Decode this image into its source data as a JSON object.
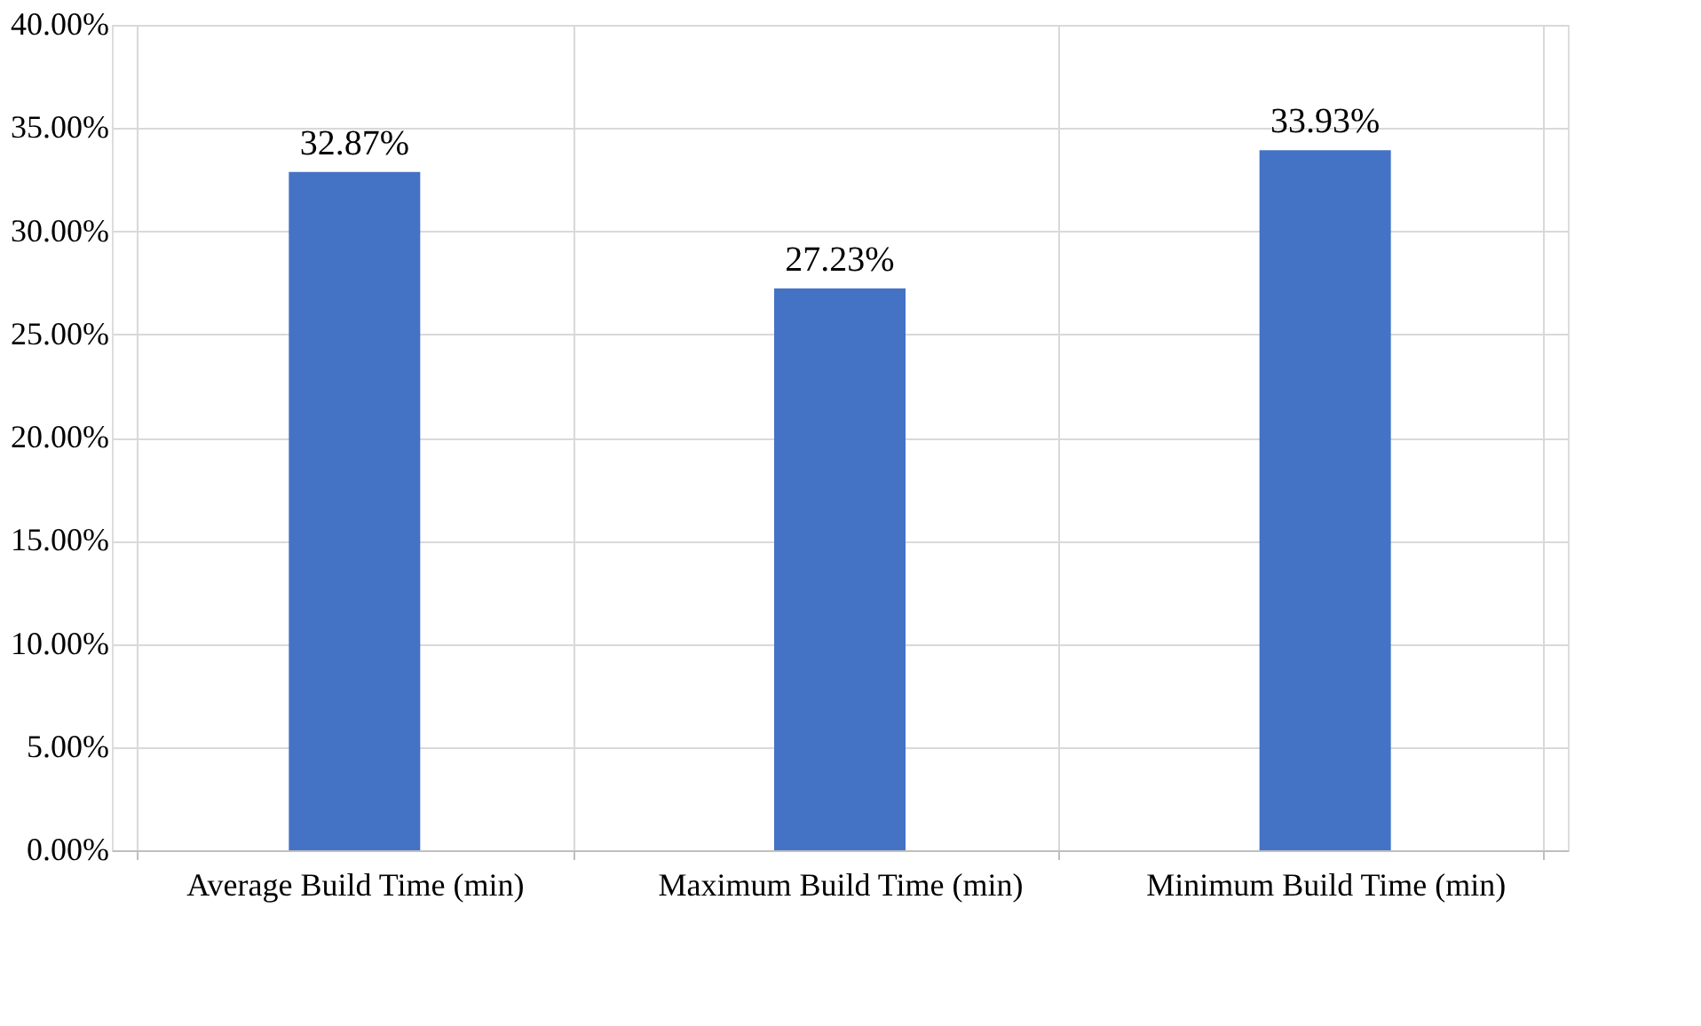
{
  "chart_data": {
    "type": "bar",
    "categories": [
      "Average Build Time (min)",
      "Maximum Build Time (min)",
      "Minimum Build Time (min)"
    ],
    "values": [
      32.87,
      27.23,
      33.93
    ],
    "value_labels": [
      "32.87%",
      "27.23%",
      "33.93%"
    ],
    "color": "#4472c4",
    "ylim": [
      0,
      40
    ],
    "yticks": [
      {
        "value": 0,
        "label": "0.00%"
      },
      {
        "value": 5,
        "label": "5.00%"
      },
      {
        "value": 10,
        "label": "10.00%"
      },
      {
        "value": 15,
        "label": "15.00%"
      },
      {
        "value": 20,
        "label": "20.00%"
      },
      {
        "value": 25,
        "label": "25.00%"
      },
      {
        "value": 30,
        "label": "30.00%"
      },
      {
        "value": 35,
        "label": "35.00%"
      },
      {
        "value": 40,
        "label": "40.00%"
      }
    ],
    "grid": true
  }
}
